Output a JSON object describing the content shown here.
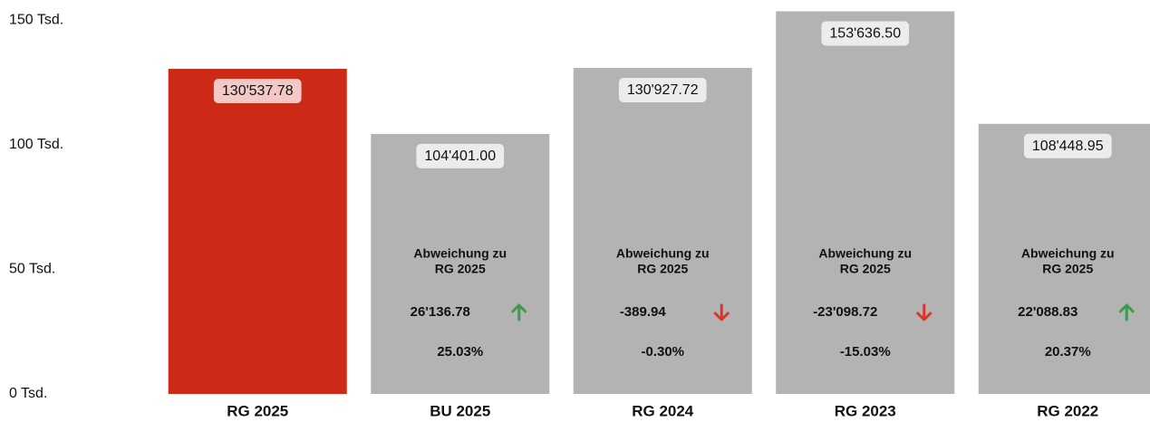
{
  "chart_data": {
    "type": "bar",
    "categories": [
      "RG 2025",
      "BU 2025",
      "RG 2024",
      "RG 2023",
      "RG 2022"
    ],
    "values": [
      130537.78,
      104401.0,
      130927.72,
      153636.5,
      108448.95
    ],
    "value_labels": [
      "130'537.78",
      "104'401.00",
      "130'927.72",
      "153'636.50",
      "108'448.95"
    ],
    "colors": [
      "#cc2a16",
      "#b3b3b3",
      "#b3b3b3",
      "#b3b3b3",
      "#b3b3b3"
    ],
    "ylim": [
      0,
      155000
    ],
    "yticks": [
      {
        "value": 0,
        "label": "0 Tsd."
      },
      {
        "value": 50000,
        "label": "50 Tsd."
      },
      {
        "value": 100000,
        "label": "100 Tsd."
      },
      {
        "value": 150000,
        "label": "150 Tsd."
      }
    ],
    "annotation": [
      "Abweichung zu",
      "RG 2025"
    ],
    "deviations": {
      "values": [
        null,
        26136.78,
        -389.94,
        -23098.72,
        22088.83
      ],
      "value_labels": [
        null,
        "26'136.78",
        "-389.94",
        "-23'098.72",
        "22'088.83"
      ]
    },
    "deviation_percent": {
      "values": [
        null,
        25.03,
        -0.3,
        -15.03,
        20.37
      ],
      "value_labels": [
        null,
        "25.03%",
        "-0.30%",
        "-15.03%",
        "20.37%"
      ]
    }
  }
}
